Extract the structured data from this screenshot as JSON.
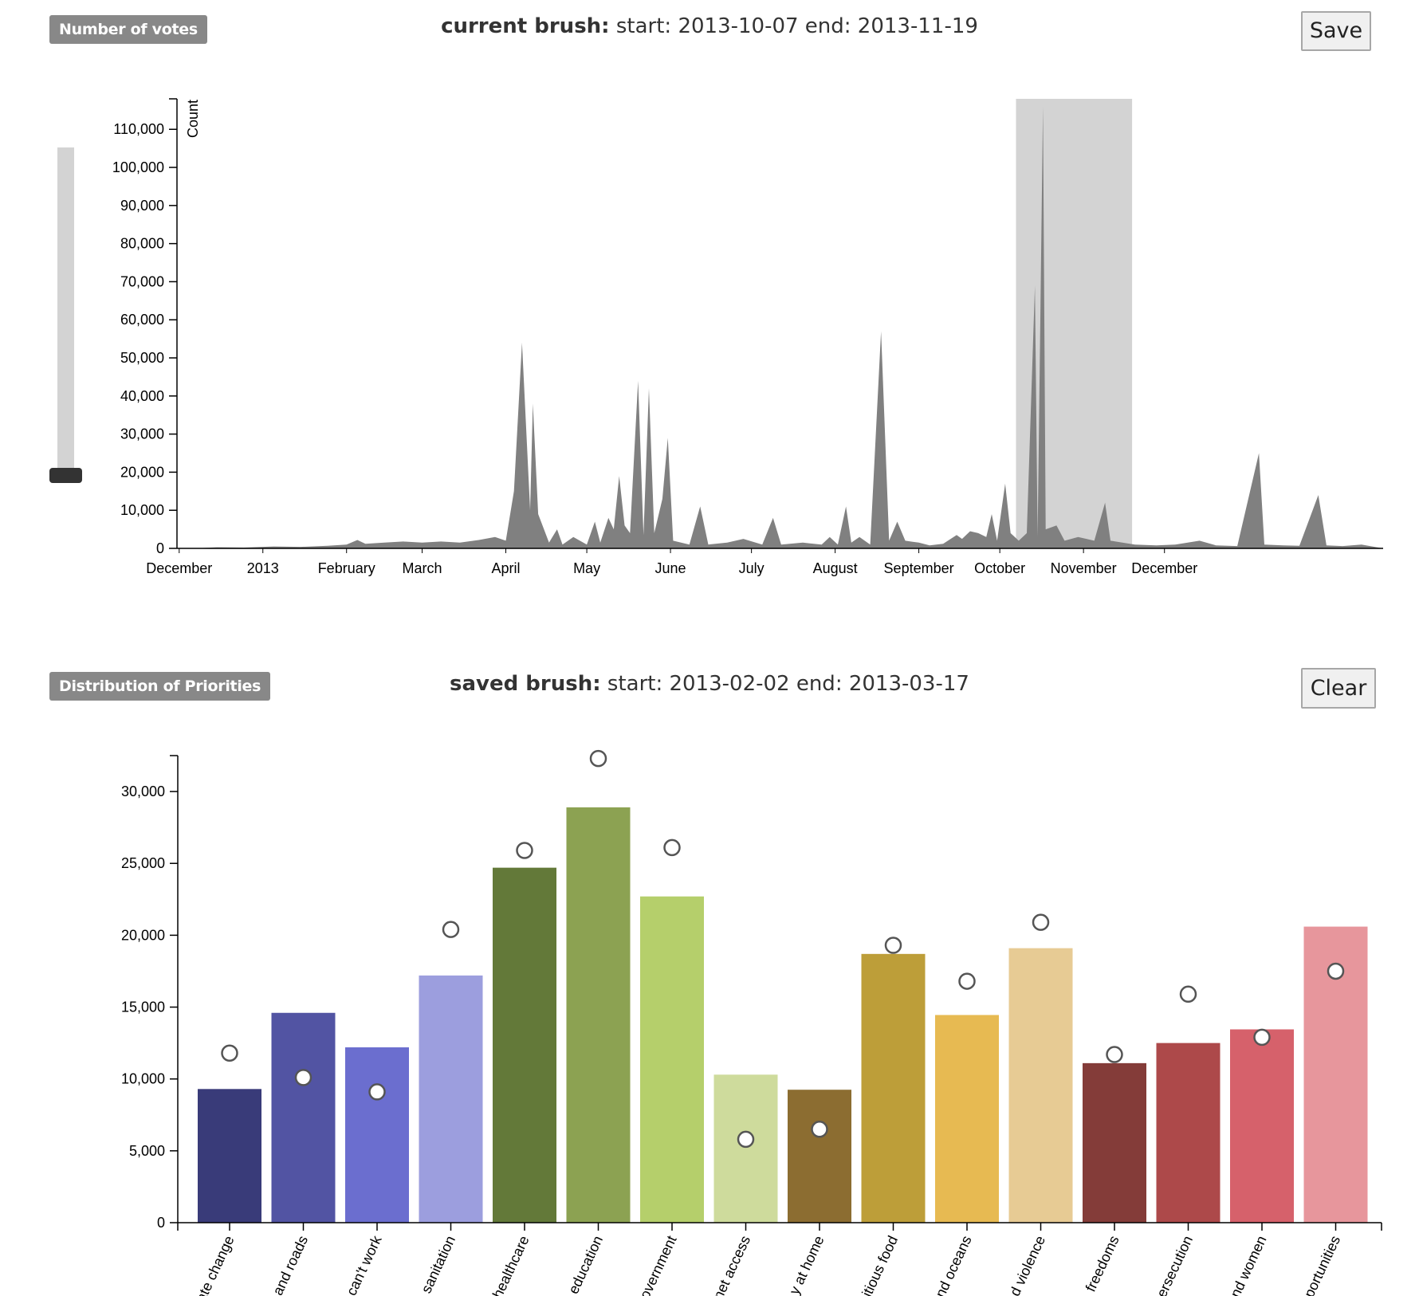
{
  "top": {
    "badge_label": "Number of votes",
    "brush_label": "current brush:",
    "brush_range": "start: 2013-10-07 end: 2013-11-19",
    "save_label": "Save"
  },
  "bottom": {
    "badge_label": "Distribution of Priorities",
    "brush_label": "saved brush:",
    "brush_range": "start: 2013-02-02 end: 2013-03-17",
    "clear_label": "Clear"
  },
  "chart_data": [
    {
      "type": "area",
      "ylabel": "Count",
      "ylim": [
        0,
        118000
      ],
      "yticks": [
        0,
        10000,
        20000,
        30000,
        40000,
        50000,
        60000,
        70000,
        80000,
        90000,
        100000,
        110000
      ],
      "xticks": [
        "December",
        "2013",
        "February",
        "March",
        "April",
        "May",
        "June",
        "July",
        "August",
        "September",
        "October",
        "November",
        "December"
      ],
      "brush": {
        "start": "2013-10-07",
        "end": "2013-11-19"
      },
      "color": "#808080",
      "brush_color": "#d3d3d3",
      "points": [
        [
          "2012-12-07",
          0
        ],
        [
          "2012-12-15",
          300
        ],
        [
          "2012-12-25",
          200
        ],
        [
          "2013-01-05",
          500
        ],
        [
          "2013-01-15",
          400
        ],
        [
          "2013-01-25",
          700
        ],
        [
          "2013-02-01",
          1000
        ],
        [
          "2013-02-05",
          2200
        ],
        [
          "2013-02-08",
          1200
        ],
        [
          "2013-02-15",
          1500
        ],
        [
          "2013-02-22",
          1800
        ],
        [
          "2013-03-01",
          1500
        ],
        [
          "2013-03-08",
          1800
        ],
        [
          "2013-03-15",
          1500
        ],
        [
          "2013-03-22",
          2200
        ],
        [
          "2013-03-28",
          3000
        ],
        [
          "2013-04-01",
          2000
        ],
        [
          "2013-04-04",
          15000
        ],
        [
          "2013-04-07",
          54000
        ],
        [
          "2013-04-10",
          10000
        ],
        [
          "2013-04-11",
          38000
        ],
        [
          "2013-04-13",
          9000
        ],
        [
          "2013-04-17",
          1500
        ],
        [
          "2013-04-20",
          5000
        ],
        [
          "2013-04-22",
          1000
        ],
        [
          "2013-04-26",
          3000
        ],
        [
          "2013-05-01",
          1000
        ],
        [
          "2013-05-04",
          7000
        ],
        [
          "2013-05-06",
          1500
        ],
        [
          "2013-05-09",
          8000
        ],
        [
          "2013-05-11",
          5000
        ],
        [
          "2013-05-13",
          19000
        ],
        [
          "2013-05-15",
          6000
        ],
        [
          "2013-05-17",
          4000
        ],
        [
          "2013-05-20",
          44000
        ],
        [
          "2013-05-22",
          3500
        ],
        [
          "2013-05-24",
          42000
        ],
        [
          "2013-05-26",
          4000
        ],
        [
          "2013-05-29",
          13000
        ],
        [
          "2013-05-31",
          29000
        ],
        [
          "2013-06-02",
          2000
        ],
        [
          "2013-06-08",
          1000
        ],
        [
          "2013-06-12",
          11000
        ],
        [
          "2013-06-15",
          1000
        ],
        [
          "2013-06-22",
          1500
        ],
        [
          "2013-06-28",
          2500
        ],
        [
          "2013-07-05",
          1000
        ],
        [
          "2013-07-09",
          8000
        ],
        [
          "2013-07-12",
          1000
        ],
        [
          "2013-07-20",
          1500
        ],
        [
          "2013-07-27",
          1000
        ],
        [
          "2013-07-30",
          3000
        ],
        [
          "2013-08-02",
          1000
        ],
        [
          "2013-08-05",
          11000
        ],
        [
          "2013-08-07",
          1500
        ],
        [
          "2013-08-10",
          3000
        ],
        [
          "2013-08-14",
          1000
        ],
        [
          "2013-08-18",
          57000
        ],
        [
          "2013-08-21",
          2000
        ],
        [
          "2013-08-24",
          7000
        ],
        [
          "2013-08-27",
          2000
        ],
        [
          "2013-09-01",
          1500
        ],
        [
          "2013-09-05",
          800
        ],
        [
          "2013-09-10",
          1200
        ],
        [
          "2013-09-15",
          3500
        ],
        [
          "2013-09-17",
          2500
        ],
        [
          "2013-09-20",
          4500
        ],
        [
          "2013-09-23",
          4000
        ],
        [
          "2013-09-26",
          3000
        ],
        [
          "2013-09-28",
          9000
        ],
        [
          "2013-09-30",
          2000
        ],
        [
          "2013-10-03",
          17000
        ],
        [
          "2013-10-05",
          4000
        ],
        [
          "2013-10-08",
          2000
        ],
        [
          "2013-10-11",
          4000
        ],
        [
          "2013-10-14",
          69000
        ],
        [
          "2013-10-15",
          3000
        ],
        [
          "2013-10-17",
          116000
        ],
        [
          "2013-10-18",
          5000
        ],
        [
          "2013-10-22",
          6000
        ],
        [
          "2013-10-25",
          2000
        ],
        [
          "2013-10-30",
          3000
        ],
        [
          "2013-11-05",
          2000
        ],
        [
          "2013-11-09",
          12000
        ],
        [
          "2013-11-11",
          2000
        ],
        [
          "2013-11-20",
          1000
        ],
        [
          "2013-11-28",
          800
        ],
        [
          "2013-12-05",
          1000
        ],
        [
          "2013-12-14",
          2000
        ],
        [
          "2013-12-20",
          800
        ],
        [
          "2013-12-28",
          600
        ],
        [
          "2014-01-05",
          25000
        ],
        [
          "2014-01-07",
          1000
        ],
        [
          "2014-01-14",
          800
        ],
        [
          "2014-01-20",
          700
        ],
        [
          "2014-01-27",
          14000
        ],
        [
          "2014-01-30",
          800
        ],
        [
          "2014-02-05",
          600
        ],
        [
          "2014-02-12",
          1000
        ],
        [
          "2014-02-20",
          0
        ]
      ]
    },
    {
      "type": "bar",
      "ylim": [
        0,
        32500
      ],
      "yticks": [
        0,
        5000,
        10000,
        15000,
        20000,
        25000,
        30000
      ],
      "categories": [
        "ate change",
        "and roads",
        "can't work",
        "sanitation",
        "healthcare",
        "education",
        "overnment",
        "net access",
        "y at home",
        "itious food",
        "nd oceans",
        "d violence",
        "freedoms",
        "ersecution",
        "nd women",
        "portunities"
      ],
      "values": [
        9300,
        14600,
        12200,
        17200,
        24700,
        28900,
        22700,
        10300,
        9250,
        18700,
        14450,
        19100,
        11100,
        12500,
        13450,
        20600
      ],
      "saved_values": [
        11800,
        10100,
        9100,
        20400,
        25900,
        32300,
        26100,
        5800,
        6500,
        19300,
        16800,
        20900,
        11700,
        15900,
        12900,
        17500
      ],
      "colors": [
        "#393b79",
        "#5254a3",
        "#6b6ecf",
        "#9c9ede",
        "#637939",
        "#8ca252",
        "#b5cf6b",
        "#cedb9c",
        "#8c6d31",
        "#bd9e39",
        "#e7ba52",
        "#e7cb94",
        "#843c39",
        "#ad494a",
        "#d6616b",
        "#e7969c"
      ]
    }
  ]
}
